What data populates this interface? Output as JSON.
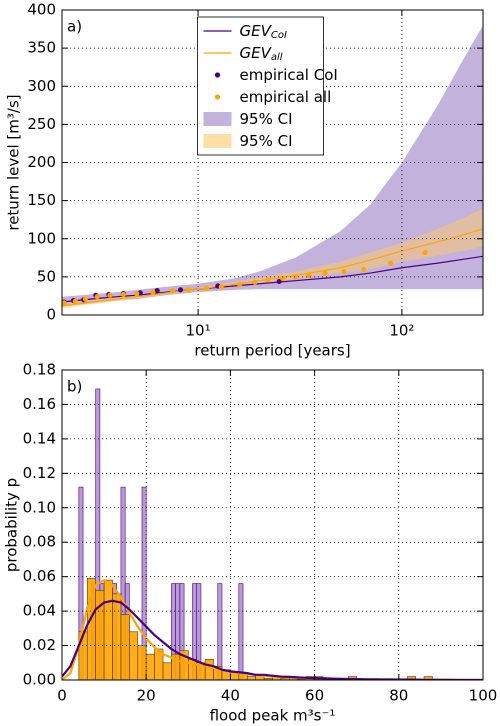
{
  "chart_data": [
    {
      "type": "line",
      "panel_label": "a)",
      "xlabel": "return period [years]",
      "ylabel": "return level [m³/s]",
      "xscale": "log",
      "xlim": [
        2.15,
        250
      ],
      "ylim": [
        0,
        400
      ],
      "xticks": [
        {
          "value": 10,
          "label": "10¹"
        },
        {
          "value": 100,
          "label": "10²"
        }
      ],
      "yticks": [
        0,
        50,
        100,
        150,
        200,
        250,
        300,
        350,
        400
      ],
      "grid": true,
      "legend": "upper center",
      "series": [
        {
          "name": "GEV",
          "name_sub": "CoI",
          "kind": "line",
          "color": "#4b0082",
          "x": [
            2.15,
            3,
            4,
            5,
            7,
            10,
            15,
            20,
            30,
            50,
            70,
            100,
            150,
            200,
            250
          ],
          "values": [
            17,
            21,
            24,
            26,
            30,
            34,
            38,
            41,
            45,
            50,
            55,
            62,
            68,
            73,
            77
          ]
        },
        {
          "name": "GEV",
          "name_sub": "all",
          "kind": "line",
          "color": "#ffa500",
          "x": [
            2.15,
            3,
            4,
            5,
            7,
            10,
            15,
            20,
            30,
            50,
            70,
            100,
            150,
            200,
            250
          ],
          "values": [
            12,
            17,
            21,
            24,
            29,
            34,
            40,
            45,
            52,
            62,
            72,
            84,
            96,
            105,
            113
          ]
        },
        {
          "name": "empirical CoI",
          "kind": "scatter",
          "color": "#4b0082",
          "x": [
            2.2,
            2.45,
            2.75,
            3.15,
            3.65,
            4.3,
            5.2,
            6.3,
            8.2,
            12.5,
            25
          ],
          "values": [
            17,
            19,
            20,
            26,
            27,
            28,
            29,
            32,
            33,
            38,
            44
          ]
        },
        {
          "name": "empirical all",
          "kind": "scatter",
          "color": "#ffa500",
          "x": [
            2.2,
            2.5,
            2.8,
            3.2,
            3.7,
            4.3,
            5,
            6,
            7.5,
            9,
            11,
            13,
            16,
            19,
            22,
            26,
            30,
            35,
            42,
            52,
            65,
            88,
            130
          ],
          "values": [
            16,
            18,
            21,
            24,
            26,
            27,
            28,
            30,
            32,
            33,
            35,
            37,
            40,
            43,
            46,
            48,
            50,
            52,
            55,
            57,
            60,
            68,
            82
          ]
        }
      ],
      "bands": [
        {
          "name": "95% CI",
          "color": "#9b7fc4",
          "x": [
            2.15,
            3,
            4,
            5,
            7,
            10,
            15,
            20,
            30,
            50,
            70,
            100,
            150,
            200,
            250
          ],
          "upper": [
            24,
            27,
            30,
            33,
            37,
            41,
            48,
            57,
            75,
            110,
            145,
            200,
            275,
            335,
            380
          ],
          "lower": [
            11,
            15,
            19,
            21,
            26,
            30,
            33,
            34,
            34,
            34,
            34,
            34,
            34,
            34,
            34
          ]
        },
        {
          "name": "95% CI",
          "color": "#ffc966",
          "x": [
            2.15,
            3,
            4,
            5,
            7,
            10,
            15,
            20,
            30,
            50,
            70,
            100,
            150,
            200,
            250
          ],
          "upper": [
            15,
            20,
            24,
            27,
            31,
            36,
            43,
            49,
            57,
            70,
            82,
            95,
            113,
            127,
            140
          ],
          "lower": [
            9,
            14,
            18,
            21,
            27,
            32,
            37,
            42,
            47,
            55,
            60,
            70,
            78,
            84,
            90
          ]
        }
      ]
    },
    {
      "type": "histogram",
      "panel_label": "b)",
      "xlabel": "flood peak m³s⁻¹",
      "ylabel": "probability p",
      "xlim": [
        0,
        100
      ],
      "ylim": [
        0,
        0.18
      ],
      "xticks": [
        0,
        20,
        40,
        60,
        80,
        100
      ],
      "yticks": [
        {
          "value": 0,
          "label": "0.00"
        },
        0.02,
        0.04,
        0.06,
        0.08,
        {
          "value": 0.1,
          "label": "0.10"
        },
        0.12,
        0.14,
        0.16,
        0.18
      ],
      "grid": true,
      "series": [
        {
          "color": "#ffa500",
          "edge": "#5a3a00",
          "bins": [
            0,
            2,
            4,
            6,
            8,
            10,
            12,
            14,
            16,
            18,
            20,
            22,
            24,
            26,
            28,
            30,
            32,
            34,
            36,
            38,
            40,
            42,
            44,
            46,
            48,
            50,
            52,
            54,
            56,
            58,
            60,
            62,
            64,
            66,
            68,
            70,
            72,
            74,
            76,
            78,
            80,
            82,
            84,
            86,
            88,
            90
          ],
          "values": [
            0,
            0,
            0.028,
            0.059,
            0.052,
            0.058,
            0.05,
            0.038,
            0.028,
            0.02,
            0.015,
            0.018,
            0.01,
            0.015,
            0.017,
            0.012,
            0.01,
            0.012,
            0.008,
            0.006,
            0.005,
            0.004,
            0.002,
            0.003,
            0.001,
            0.002,
            0.001,
            0.002,
            0.0005,
            0.002,
            0.002,
            0,
            0,
            0,
            0.002,
            0,
            0,
            0,
            0,
            0,
            0,
            0.002,
            0,
            0.002,
            0
          ]
        },
        {
          "color": "#9b6fc4",
          "edge": "#4b0082",
          "bins": [
            4,
            5,
            6,
            7,
            8,
            9,
            10,
            11,
            12,
            13,
            14,
            15,
            16,
            17,
            18,
            19,
            20,
            21,
            22,
            23,
            24,
            25,
            26,
            27,
            28,
            29,
            30,
            31,
            32,
            33,
            34,
            35,
            36,
            37,
            38,
            39,
            40,
            41,
            42,
            43,
            44
          ],
          "values": [
            0.112,
            0,
            0,
            0.056,
            0.169,
            0.056,
            0,
            0,
            0.056,
            0,
            0.112,
            0.056,
            0,
            0,
            0,
            0.112,
            0,
            0,
            0,
            0,
            0,
            0,
            0.056,
            0.056,
            0.056,
            0,
            0,
            0.056,
            0.056,
            0,
            0,
            0,
            0,
            0.056,
            0,
            0,
            0,
            0,
            0.056,
            0
          ]
        }
      ],
      "curves": [
        {
          "color": "#ffa500",
          "x": [
            0,
            2,
            4,
            6,
            8,
            10,
            12,
            14,
            16,
            18,
            20,
            22,
            24,
            26,
            28,
            30,
            32,
            34,
            36,
            38,
            40,
            42,
            44,
            46,
            48,
            50,
            52,
            54,
            56,
            58,
            60,
            62,
            64,
            66,
            68,
            70,
            72,
            74,
            76,
            78,
            80,
            82,
            84,
            86,
            88,
            90,
            92,
            94,
            96,
            98,
            100
          ],
          "values": [
            0,
            0.004,
            0.02,
            0.042,
            0.055,
            0.058,
            0.055,
            0.048,
            0.039,
            0.031,
            0.024,
            0.019,
            0.015,
            0.013,
            0.011,
            0.01,
            0.009,
            0.008,
            0.007,
            0.006,
            0.005,
            0.004,
            0.0035,
            0.003,
            0.0025,
            0.002,
            0.0018,
            0.0015,
            0.0012,
            0.001,
            0.0009,
            0.0008,
            0.0007,
            0.0006,
            0.0005,
            0.0005,
            0.0004,
            0.0004,
            0.0003,
            0.0003,
            0.0003,
            0.0003,
            0.0002,
            0.0002,
            0.0002,
            0.0001,
            0.0001,
            0.0001,
            0,
            0,
            0
          ]
        },
        {
          "color": "#4b0082",
          "x": [
            0,
            2,
            4,
            6,
            8,
            10,
            12,
            14,
            16,
            18,
            20,
            22,
            24,
            26,
            28,
            30,
            32,
            34,
            36,
            38,
            40,
            42,
            44,
            46,
            48,
            50,
            52,
            54,
            56,
            58,
            60,
            62,
            64,
            66,
            68,
            70,
            72,
            74,
            76,
            78,
            80,
            82,
            84,
            86,
            88,
            90,
            92,
            94,
            96,
            98,
            100
          ],
          "values": [
            0.002,
            0.008,
            0.02,
            0.032,
            0.041,
            0.045,
            0.046,
            0.045,
            0.041,
            0.036,
            0.031,
            0.026,
            0.022,
            0.018,
            0.015,
            0.013,
            0.011,
            0.009,
            0.008,
            0.006,
            0.005,
            0.0045,
            0.004,
            0.003,
            0.003,
            0.0025,
            0.002,
            0.0018,
            0.0015,
            0.0013,
            0.0011,
            0.001,
            0.0008,
            0.0007,
            0.0006,
            0.0005,
            0.0004,
            0.0004,
            0.0003,
            0.0003,
            0.0002,
            0.0002,
            0.0002,
            0.0001,
            0.0001,
            0.0001,
            0.0001,
            0,
            0,
            0,
            0
          ]
        }
      ]
    }
  ]
}
